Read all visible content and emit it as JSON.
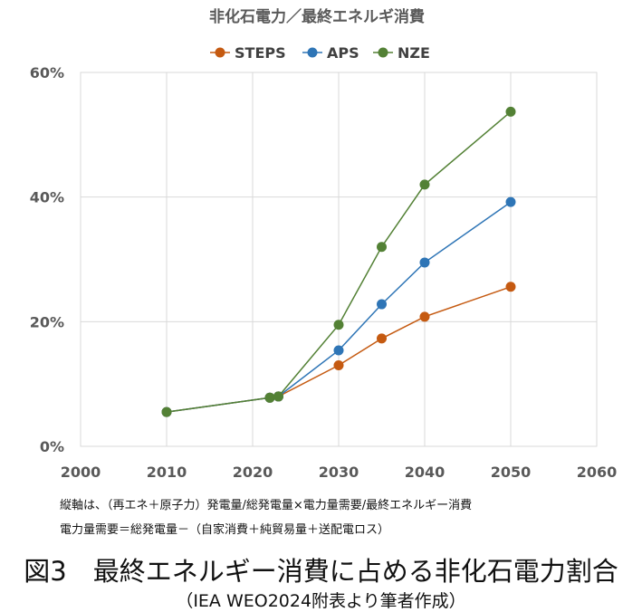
{
  "chart_data": {
    "type": "line",
    "title": "非化石電力／最終エネルギ消費",
    "xlabel": "",
    "ylabel": "",
    "xlim": [
      2000,
      2060
    ],
    "ylim": [
      0,
      60
    ],
    "x_ticks": [
      2000,
      2010,
      2020,
      2030,
      2040,
      2050,
      2060
    ],
    "y_ticks": [
      0,
      20,
      40,
      60
    ],
    "x_tick_labels": [
      "2000",
      "2010",
      "2020",
      "2030",
      "2040",
      "2050",
      "2060"
    ],
    "y_tick_labels": [
      "0%",
      "20%",
      "40%",
      "60%"
    ],
    "grid": "horizontal",
    "legend_position": "top",
    "series": [
      {
        "name": "STEPS",
        "color": "#C55A11",
        "x": [
          2010,
          2022,
          2023,
          2030,
          2035,
          2040,
          2050
        ],
        "values": [
          5.5,
          7.8,
          8.0,
          13.0,
          17.3,
          20.8,
          25.6
        ]
      },
      {
        "name": "APS",
        "color": "#2E75B6",
        "x": [
          2010,
          2022,
          2023,
          2030,
          2035,
          2040,
          2050
        ],
        "values": [
          5.5,
          7.8,
          8.0,
          15.4,
          22.8,
          29.5,
          39.2
        ]
      },
      {
        "name": "NZE",
        "color": "#538135",
        "x": [
          2010,
          2022,
          2023,
          2030,
          2035,
          2040,
          2050
        ],
        "values": [
          5.5,
          7.8,
          8.0,
          19.5,
          32.0,
          42.0,
          53.7
        ]
      }
    ]
  },
  "notes": {
    "line1": "縦軸は、（再エネ＋原子力）発電量/総発電量×電力量需要/最終エネルギー消費",
    "line2": "電力量需要＝総発電量－（自家消費＋純貿易量＋送配電ロス）"
  },
  "caption": {
    "main": "図3　最終エネルギー消費に占める非化石電力割合",
    "sub": "（IEA WEO2024附表より筆者作成）"
  }
}
